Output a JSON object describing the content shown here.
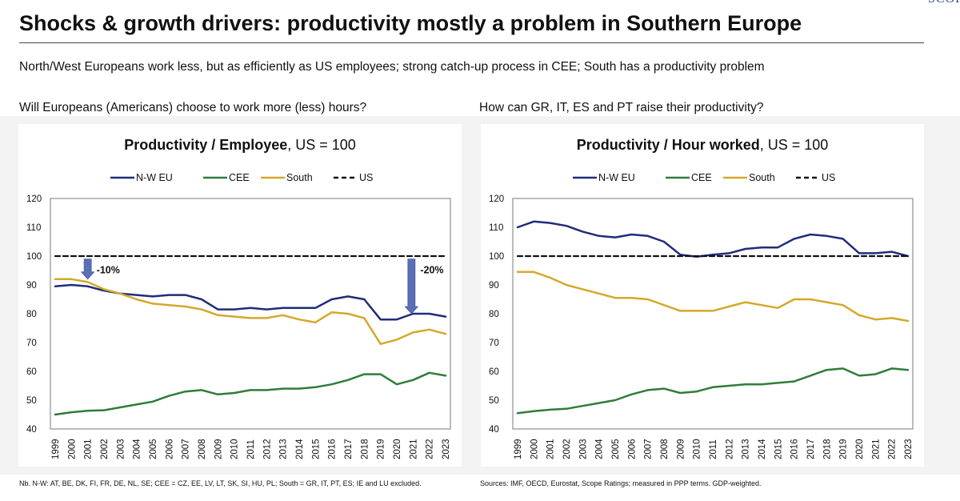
{
  "header": {
    "title": "Shocks & growth drivers: productivity mostly a problem in Southern Europe",
    "subtitle": "North/West Europeans work less, but as efficiently as US employees; strong catch-up process in CEE; South has a productivity problem",
    "logo_text": "SCOP"
  },
  "left": {
    "question": "Will Europeans (Americans) choose to work more (less) hours?",
    "note": "Nb. N-W: AT, BE, DK, FI, FR, DE, NL, SE; CEE = CZ, EE, LV, LT, SK, SI, HU, PL; South = GR, IT, PT, ES; IE and LU excluded."
  },
  "right": {
    "question": "How can GR, IT, ES and PT raise their productivity?",
    "note": "Sources: IMF, OECD, Eurostat, Scope Ratings; measured in PPP terms. GDP-weighted."
  },
  "chart_data": [
    {
      "type": "line",
      "title_bold": "Productivity / Employee",
      "title_rest": ", US = 100",
      "x": [
        "1999",
        "2000",
        "2001",
        "2002",
        "2003",
        "2004",
        "2005",
        "2006",
        "2007",
        "2008",
        "2009",
        "2010",
        "2011",
        "2012",
        "2013",
        "2014",
        "2015",
        "2016",
        "2017",
        "2018",
        "2019",
        "2020",
        "2021",
        "2022",
        "2023"
      ],
      "ylim": [
        40,
        120
      ],
      "yticks": [
        40,
        50,
        60,
        70,
        80,
        90,
        100,
        110,
        120
      ],
      "legend_position": "top-center",
      "series": [
        {
          "name": "N-W EU",
          "color": "#1f2d7a",
          "dash": "",
          "values": [
            89.5,
            90,
            89.5,
            88,
            87,
            86.5,
            86,
            86.5,
            86.5,
            85,
            81.5,
            81.5,
            82,
            81.5,
            82,
            82,
            82,
            85,
            86,
            85,
            78,
            78,
            80,
            80,
            79
          ]
        },
        {
          "name": "CEE",
          "color": "#2e7d3a",
          "dash": "",
          "values": [
            45,
            45.8,
            46.3,
            46.5,
            47.5,
            48.5,
            49.5,
            51.5,
            53,
            53.5,
            52,
            52.5,
            53.5,
            53.5,
            54,
            54,
            54.5,
            55.5,
            57,
            59,
            59,
            55.5,
            57,
            59.5,
            58.5
          ]
        },
        {
          "name": "South",
          "color": "#d4a82a",
          "dash": "",
          "values": [
            92,
            92,
            91,
            88.5,
            87,
            85,
            83.5,
            83,
            82.5,
            81.5,
            79.5,
            79,
            78.5,
            78.5,
            79.5,
            78,
            77,
            80.5,
            80,
            78.5,
            69.5,
            71,
            73.5,
            74.5,
            73
          ]
        },
        {
          "name": "US",
          "color": "#111111",
          "dash": "6,4",
          "values": [
            100,
            100,
            100,
            100,
            100,
            100,
            100,
            100,
            100,
            100,
            100,
            100,
            100,
            100,
            100,
            100,
            100,
            100,
            100,
            100,
            100,
            100,
            100,
            100,
            100
          ]
        }
      ],
      "annotations": [
        {
          "text": "-10%",
          "x": "2001",
          "from": 99,
          "to": 92
        },
        {
          "text": "-20%",
          "x": "2021",
          "from": 99,
          "to": 80
        }
      ]
    },
    {
      "type": "line",
      "title_bold": "Productivity / Hour worked",
      "title_rest": ", US = 100",
      "x": [
        "1999",
        "2000",
        "2001",
        "2002",
        "2003",
        "2004",
        "2005",
        "2006",
        "2007",
        "2008",
        "2009",
        "2010",
        "2011",
        "2012",
        "2013",
        "2014",
        "2015",
        "2016",
        "2017",
        "2018",
        "2019",
        "2020",
        "2021",
        "2022",
        "2023"
      ],
      "ylim": [
        40,
        120
      ],
      "yticks": [
        40,
        50,
        60,
        70,
        80,
        90,
        100,
        110,
        120
      ],
      "legend_position": "top-center",
      "series": [
        {
          "name": "N-W EU",
          "color": "#1f2d7a",
          "dash": "",
          "values": [
            110,
            112,
            111.5,
            110.5,
            108.5,
            107,
            106.5,
            107.5,
            107,
            105,
            100.5,
            99.8,
            100.5,
            101,
            102.5,
            103,
            103,
            106,
            107.5,
            107,
            106,
            101,
            101,
            101.5,
            100
          ]
        },
        {
          "name": "CEE",
          "color": "#2e7d3a",
          "dash": "",
          "values": [
            45.5,
            46.2,
            46.7,
            47,
            48,
            49,
            50,
            52,
            53.5,
            54,
            52.5,
            53,
            54.5,
            55,
            55.5,
            55.5,
            56,
            56.5,
            58.5,
            60.5,
            61,
            58.5,
            59,
            61,
            60.5
          ]
        },
        {
          "name": "South",
          "color": "#d4a82a",
          "dash": "",
          "values": [
            94.5,
            94.5,
            92.5,
            90,
            88.5,
            87,
            85.5,
            85.5,
            85,
            83,
            81,
            81,
            81,
            82.5,
            84,
            83,
            82,
            85,
            85,
            84,
            83,
            79.5,
            78,
            78.5,
            77.5
          ]
        },
        {
          "name": "US",
          "color": "#111111",
          "dash": "6,4",
          "values": [
            100,
            100,
            100,
            100,
            100,
            100,
            100,
            100,
            100,
            100,
            100,
            100,
            100,
            100,
            100,
            100,
            100,
            100,
            100,
            100,
            100,
            100,
            100,
            100,
            100
          ]
        }
      ],
      "annotations": []
    }
  ]
}
